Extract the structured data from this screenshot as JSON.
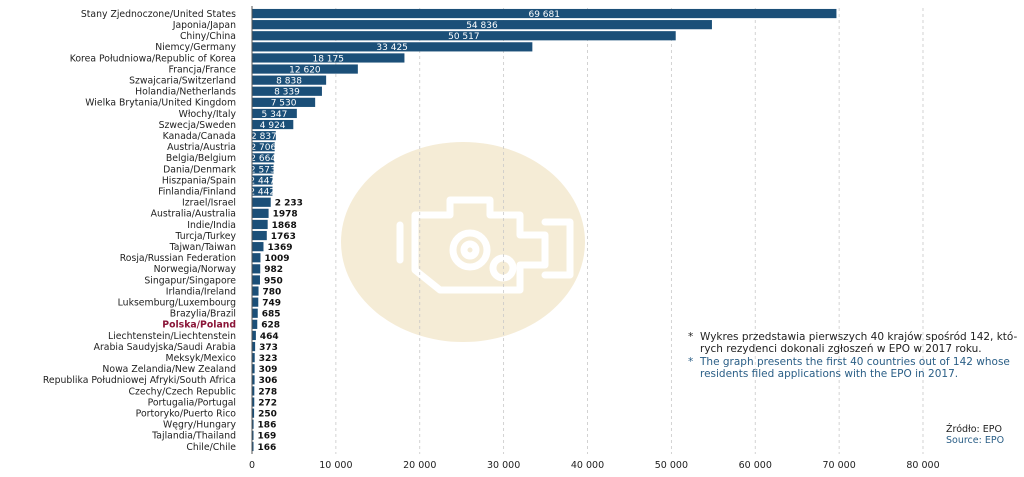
{
  "chart_data": {
    "type": "bar",
    "orientation": "horizontal",
    "categories": [
      "Stany Zjednoczone/United States",
      "Japonia/Japan",
      "Chiny/China",
      "Niemcy/Germany",
      "Korea Południowa/Republic of Korea",
      "Francja/France",
      "Szwajcaria/Switzerland",
      "Holandia/Netherlands",
      "Wielka Brytania/United Kingdom",
      "Włochy/Italy",
      "Szwecja/Sweden",
      "Kanada/Canada",
      "Austria/Austria",
      "Belgia/Belgium",
      "Dania/Denmark",
      "Hiszpania/Spain",
      "Finlandia/Finland",
      "Izrael/Israel",
      "Australia/Australia",
      "Indie/India",
      "Turcja/Turkey",
      "Tajwan/Taiwan",
      "Rosja/Russian Federation",
      "Norwegia/Norway",
      "Singapur/Singapore",
      "Irlandia/Ireland",
      "Luksemburg/Luxembourg",
      "Brazylia/Brazil",
      "Polska/Poland",
      "Liechtenstein/Liechtenstein",
      "Arabia Saudyjska/Saudi Arabia",
      "Meksyk/Mexico",
      "Nowa Zelandia/New Zealand",
      "Republika Południowej Afryki/South Africa",
      "Czechy/Czech Republic",
      "Portugalia/Portugal",
      "Portoryko/Puerto Rico",
      "Węgry/Hungary",
      "Tajlandia/Thailand",
      "Chile/Chile"
    ],
    "values": [
      69681,
      54836,
      50517,
      33425,
      18175,
      12620,
      8838,
      8339,
      7530,
      5347,
      4924,
      2837,
      2706,
      2664,
      2573,
      2447,
      2442,
      2233,
      1978,
      1868,
      1763,
      1369,
      1009,
      982,
      950,
      780,
      749,
      685,
      628,
      464,
      373,
      323,
      309,
      306,
      278,
      272,
      250,
      186,
      169,
      166
    ],
    "value_labels": [
      "69 681",
      "54 836",
      "50 517",
      "33 425",
      "18 175",
      "12 620",
      "8 838",
      "8 339",
      "7 530",
      "5 347",
      "4 924",
      "2 837",
      "2 706",
      "2 664",
      "2 573",
      "2 447",
      "2 442",
      "2 233",
      "1978",
      "1868",
      "1763",
      "1369",
      "1009",
      "982",
      "950",
      "780",
      "749",
      "685",
      "628",
      "464",
      "373",
      "323",
      "309",
      "306",
      "278",
      "272",
      "250",
      "186",
      "169",
      "166"
    ],
    "highlight": "Polska/Poland",
    "xlim": [
      0,
      80000
    ],
    "xticks": [
      0,
      10000,
      20000,
      30000,
      40000,
      50000,
      60000,
      70000,
      80000
    ],
    "xtick_labels": [
      "0",
      "10 000",
      "20 000",
      "30 000",
      "40 000",
      "50 000",
      "60 000",
      "70 000",
      "80 000"
    ],
    "grid": "vertical dashed",
    "bar_color": "#1b4f78",
    "highlight_color": "#8a1538",
    "watermark_color": "#f5ecd6",
    "watermark_icon": "engine-gear-icon"
  },
  "notes": {
    "pl": "Wykres przedstawia pierwszych 40 krajów spośród 142, któ-\nrych rezydenci dokonali zgłoszeń w EPO w 2017 roku.",
    "en": "The graph presents the first 40 countries out of 142 whose\nresidents filed applications with the EPO in 2017.",
    "star": "*"
  },
  "source": {
    "pl": "Źródło: EPO",
    "en": "Source: EPO"
  }
}
